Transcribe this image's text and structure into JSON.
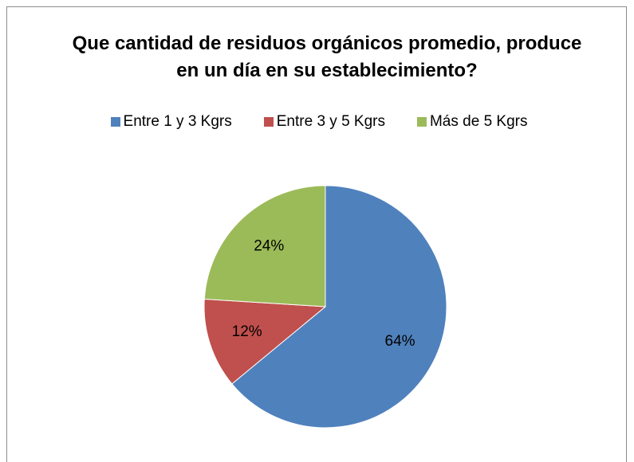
{
  "chart_data": {
    "type": "pie",
    "title": "Que cantidad de residuos orgánicos promedio, produce en un día en su establecimiento?",
    "categories": [
      "Entre 1 y 3 Kgrs",
      "Entre 3 y 5 Kgrs",
      "Más de 5 Kgrs"
    ],
    "values": [
      64,
      12,
      24
    ],
    "value_labels": [
      "64%",
      "12%",
      "24%"
    ],
    "colors": [
      "#4f81bd",
      "#c0504d",
      "#9bbb59"
    ],
    "legend": "top"
  }
}
